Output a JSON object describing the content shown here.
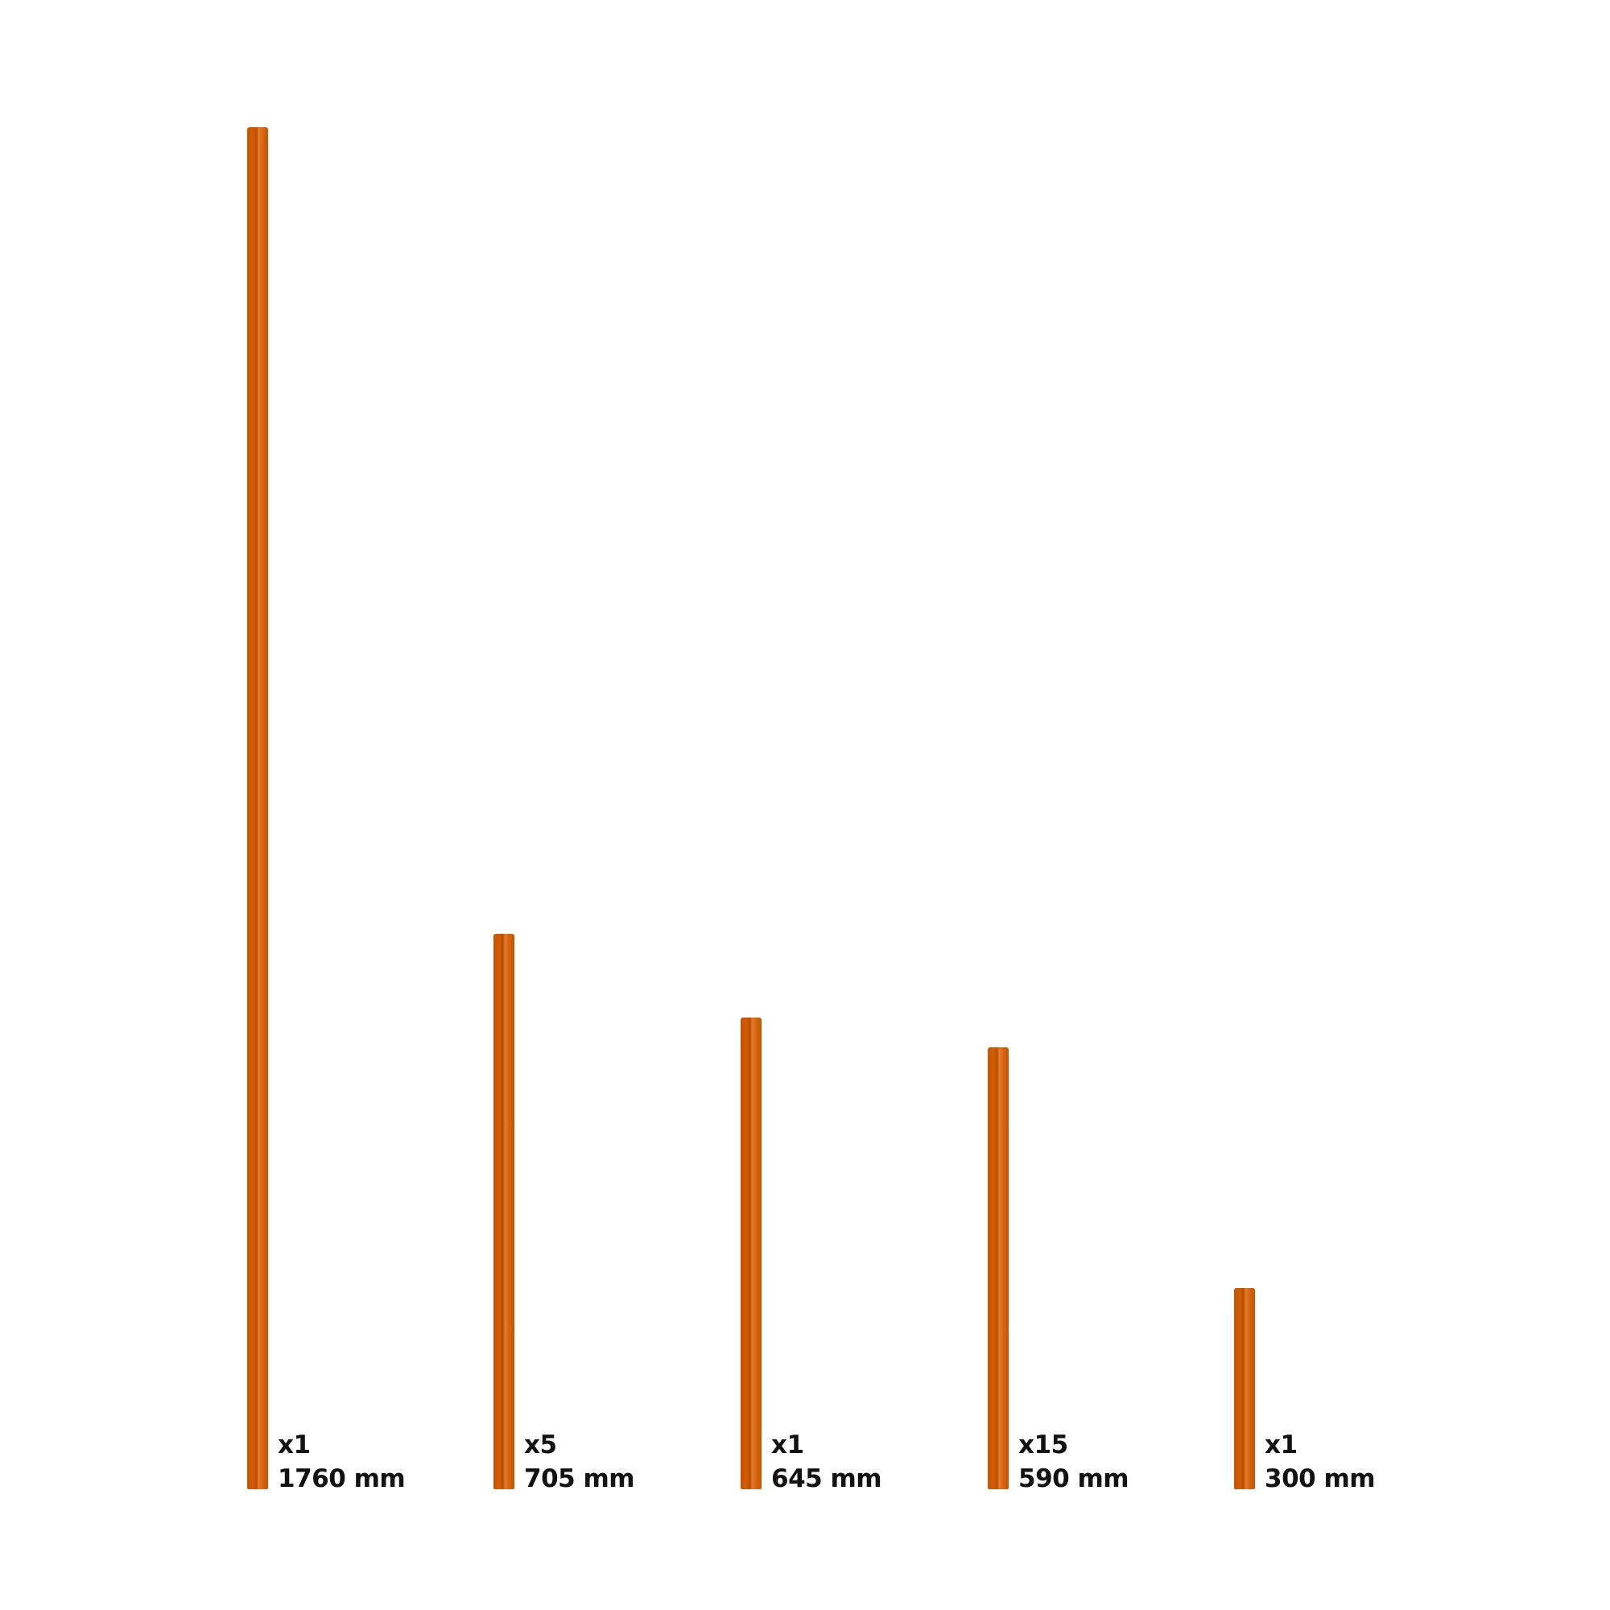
{
  "accent_color": "#d25d05",
  "rods": [
    {
      "quantity": "x1",
      "length": "1760 mm",
      "length_mm": 1760
    },
    {
      "quantity": "x5",
      "length": "705 mm",
      "length_mm": 705
    },
    {
      "quantity": "x1",
      "length": "645 mm",
      "length_mm": 645
    },
    {
      "quantity": "x15",
      "length": "590 mm",
      "length_mm": 590
    },
    {
      "quantity": "x1",
      "length": "300 mm",
      "length_mm": 300
    }
  ]
}
